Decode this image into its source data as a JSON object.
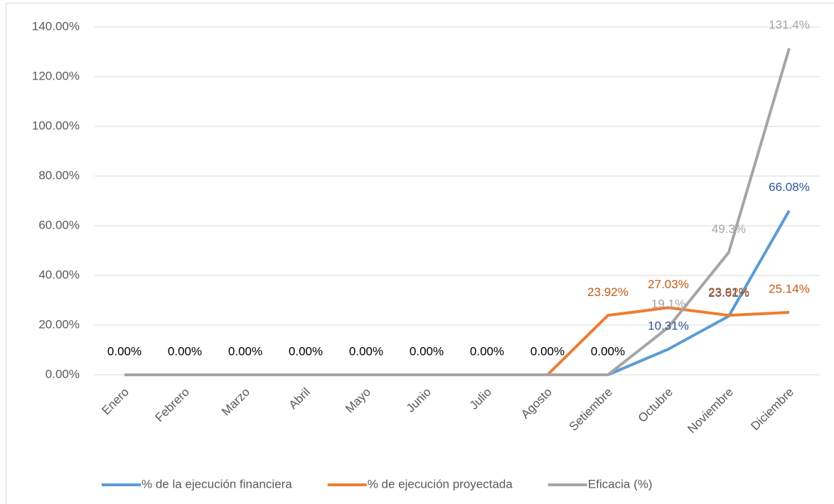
{
  "chart_data": {
    "type": "line",
    "categories": [
      "Enero",
      "Febrero",
      "Marzo",
      "Abril",
      "Mayo",
      "Junio",
      "Julio",
      "Agosto",
      "Setiembre",
      "Octubre",
      "Noviembre",
      "Diciembre"
    ],
    "series": [
      {
        "name": "% de la ejecución financiera",
        "color": "#5b9bd5",
        "values": [
          0,
          0,
          0,
          0,
          0,
          0,
          0,
          0,
          0,
          10.31,
          23.61,
          66.08
        ],
        "value_labels": [
          "0.00%",
          "0.00%",
          "0.00%",
          "0.00%",
          "0.00%",
          "0.00%",
          "0.00%",
          "0.00%",
          "0.00%",
          "10.31%",
          "23.61%",
          "66.08%"
        ]
      },
      {
        "name": "% de ejecución proyectada",
        "color": "#ed7d31",
        "values": [
          0,
          0,
          0,
          0,
          0,
          0,
          0,
          0,
          23.92,
          27.03,
          23.92,
          25.14
        ],
        "value_labels": [
          null,
          null,
          null,
          null,
          null,
          null,
          null,
          null,
          "23.92%",
          "27.03%",
          "23.92%",
          "25.14%"
        ]
      },
      {
        "name": "Eficacia (%)",
        "color": "#a5a5a5",
        "values": [
          0,
          0,
          0,
          0,
          0,
          0,
          0,
          0,
          0,
          19.1,
          49.3,
          131.4
        ],
        "value_labels": [
          null,
          null,
          null,
          null,
          null,
          null,
          null,
          null,
          null,
          "19.1%",
          "49.3%",
          "131.4%"
        ]
      }
    ],
    "ylim": [
      0,
      140
    ],
    "yticks": [
      {
        "value": 0,
        "label": "0.00%"
      },
      {
        "value": 20,
        "label": "20.00%"
      },
      {
        "value": 40,
        "label": "40.00%"
      },
      {
        "value": 60,
        "label": "60.00%"
      },
      {
        "value": 80,
        "label": "80.00%"
      },
      {
        "value": 100,
        "label": "100.00%"
      },
      {
        "value": 120,
        "label": "120.00%"
      },
      {
        "value": 140,
        "label": "140.00%"
      }
    ],
    "grid": true,
    "legend": "bottom"
  }
}
